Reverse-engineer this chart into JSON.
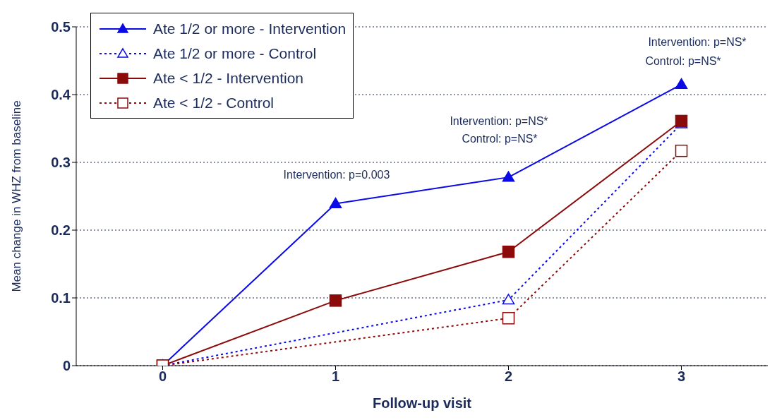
{
  "chart_data": {
    "type": "line",
    "xlabel": "Follow-up visit",
    "ylabel": "Mean change in WHZ from baseline",
    "xlim": [
      -0.5,
      3.5
    ],
    "xticks": [
      0,
      1,
      2,
      3
    ],
    "ylim": [
      0,
      0.5
    ],
    "yticks": [
      0,
      0.1,
      0.2,
      0.3,
      0.4,
      0.5
    ],
    "grid": "y",
    "legend": "top left",
    "series": [
      {
        "name": "Ate 1/2 or more - Intervention",
        "color": "#0a0ae6",
        "x": [
          0,
          1,
          2,
          3
        ],
        "values": [
          0,
          0.239,
          0.278,
          0.415
        ],
        "marker": "triangle",
        "line_style": "solid"
      },
      {
        "name": "Ate 1/2 or more - Control",
        "color": "#0a0ae6",
        "x": [
          0,
          2,
          3
        ],
        "values": [
          0,
          0.097,
          0.357
        ],
        "marker": "triangle",
        "line_style": "dotted"
      },
      {
        "name": "Ate < 1/2 - Intervention",
        "color": "#8b0a0a",
        "x": [
          0,
          1,
          2,
          3
        ],
        "values": [
          0,
          0.096,
          0.168,
          0.361
        ],
        "marker": "square",
        "line_style": "solid"
      },
      {
        "name": "Ate < 1/2 - Control",
        "color": "#8b0a0a",
        "x": [
          0,
          2,
          3
        ],
        "values": [
          0,
          0.07,
          0.317
        ],
        "marker": "square",
        "line_style": "dotted"
      }
    ],
    "annotations": [
      "Intervention: p=0.003",
      "Intervention: p=NS*",
      "Control: p=NS*",
      "Intervention: p=NS*",
      "Control: p=NS*"
    ]
  }
}
